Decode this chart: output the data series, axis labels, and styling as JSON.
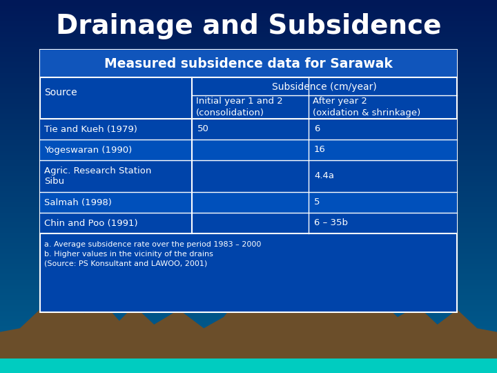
{
  "title": "Drainage and Subsidence",
  "subtitle": "Measured subsidence data for Sarawak",
  "title_color": "#FFFFFF",
  "text_color": "#FFFFFF",
  "bg_top_color": "#001858",
  "bg_mid_color": "#003878",
  "bg_bot_color": "#006888",
  "table_bg_color": "#0044AA",
  "table_border_color": "#FFFFFF",
  "subtitle_bg_color": "#1055BB",
  "header_bg_color": "#0044AA",
  "alt_row_color": "#0050BB",
  "rows": [
    [
      "Tie and Kueh (1979)",
      "50",
      "6"
    ],
    [
      "Yogeswaran (1990)",
      "",
      "16"
    ],
    [
      "Agric. Research Station\nSibu",
      "",
      "4.4a"
    ],
    [
      "Salmah (1998)",
      "",
      "5"
    ],
    [
      "Chin and Poo (1991)",
      "",
      "6 – 35b"
    ]
  ],
  "footnotes": [
    "a. Average subsidence rate over the period 1983 – 2000",
    "b. Higher values in the vicinity of the drains",
    "(Source: PS Konsultant and LAWOO, 2001)"
  ],
  "mountain_color": "#6B4E2A",
  "teal_color": "#00CCC0",
  "col_split1": 0.365,
  "col_split2": 0.645
}
